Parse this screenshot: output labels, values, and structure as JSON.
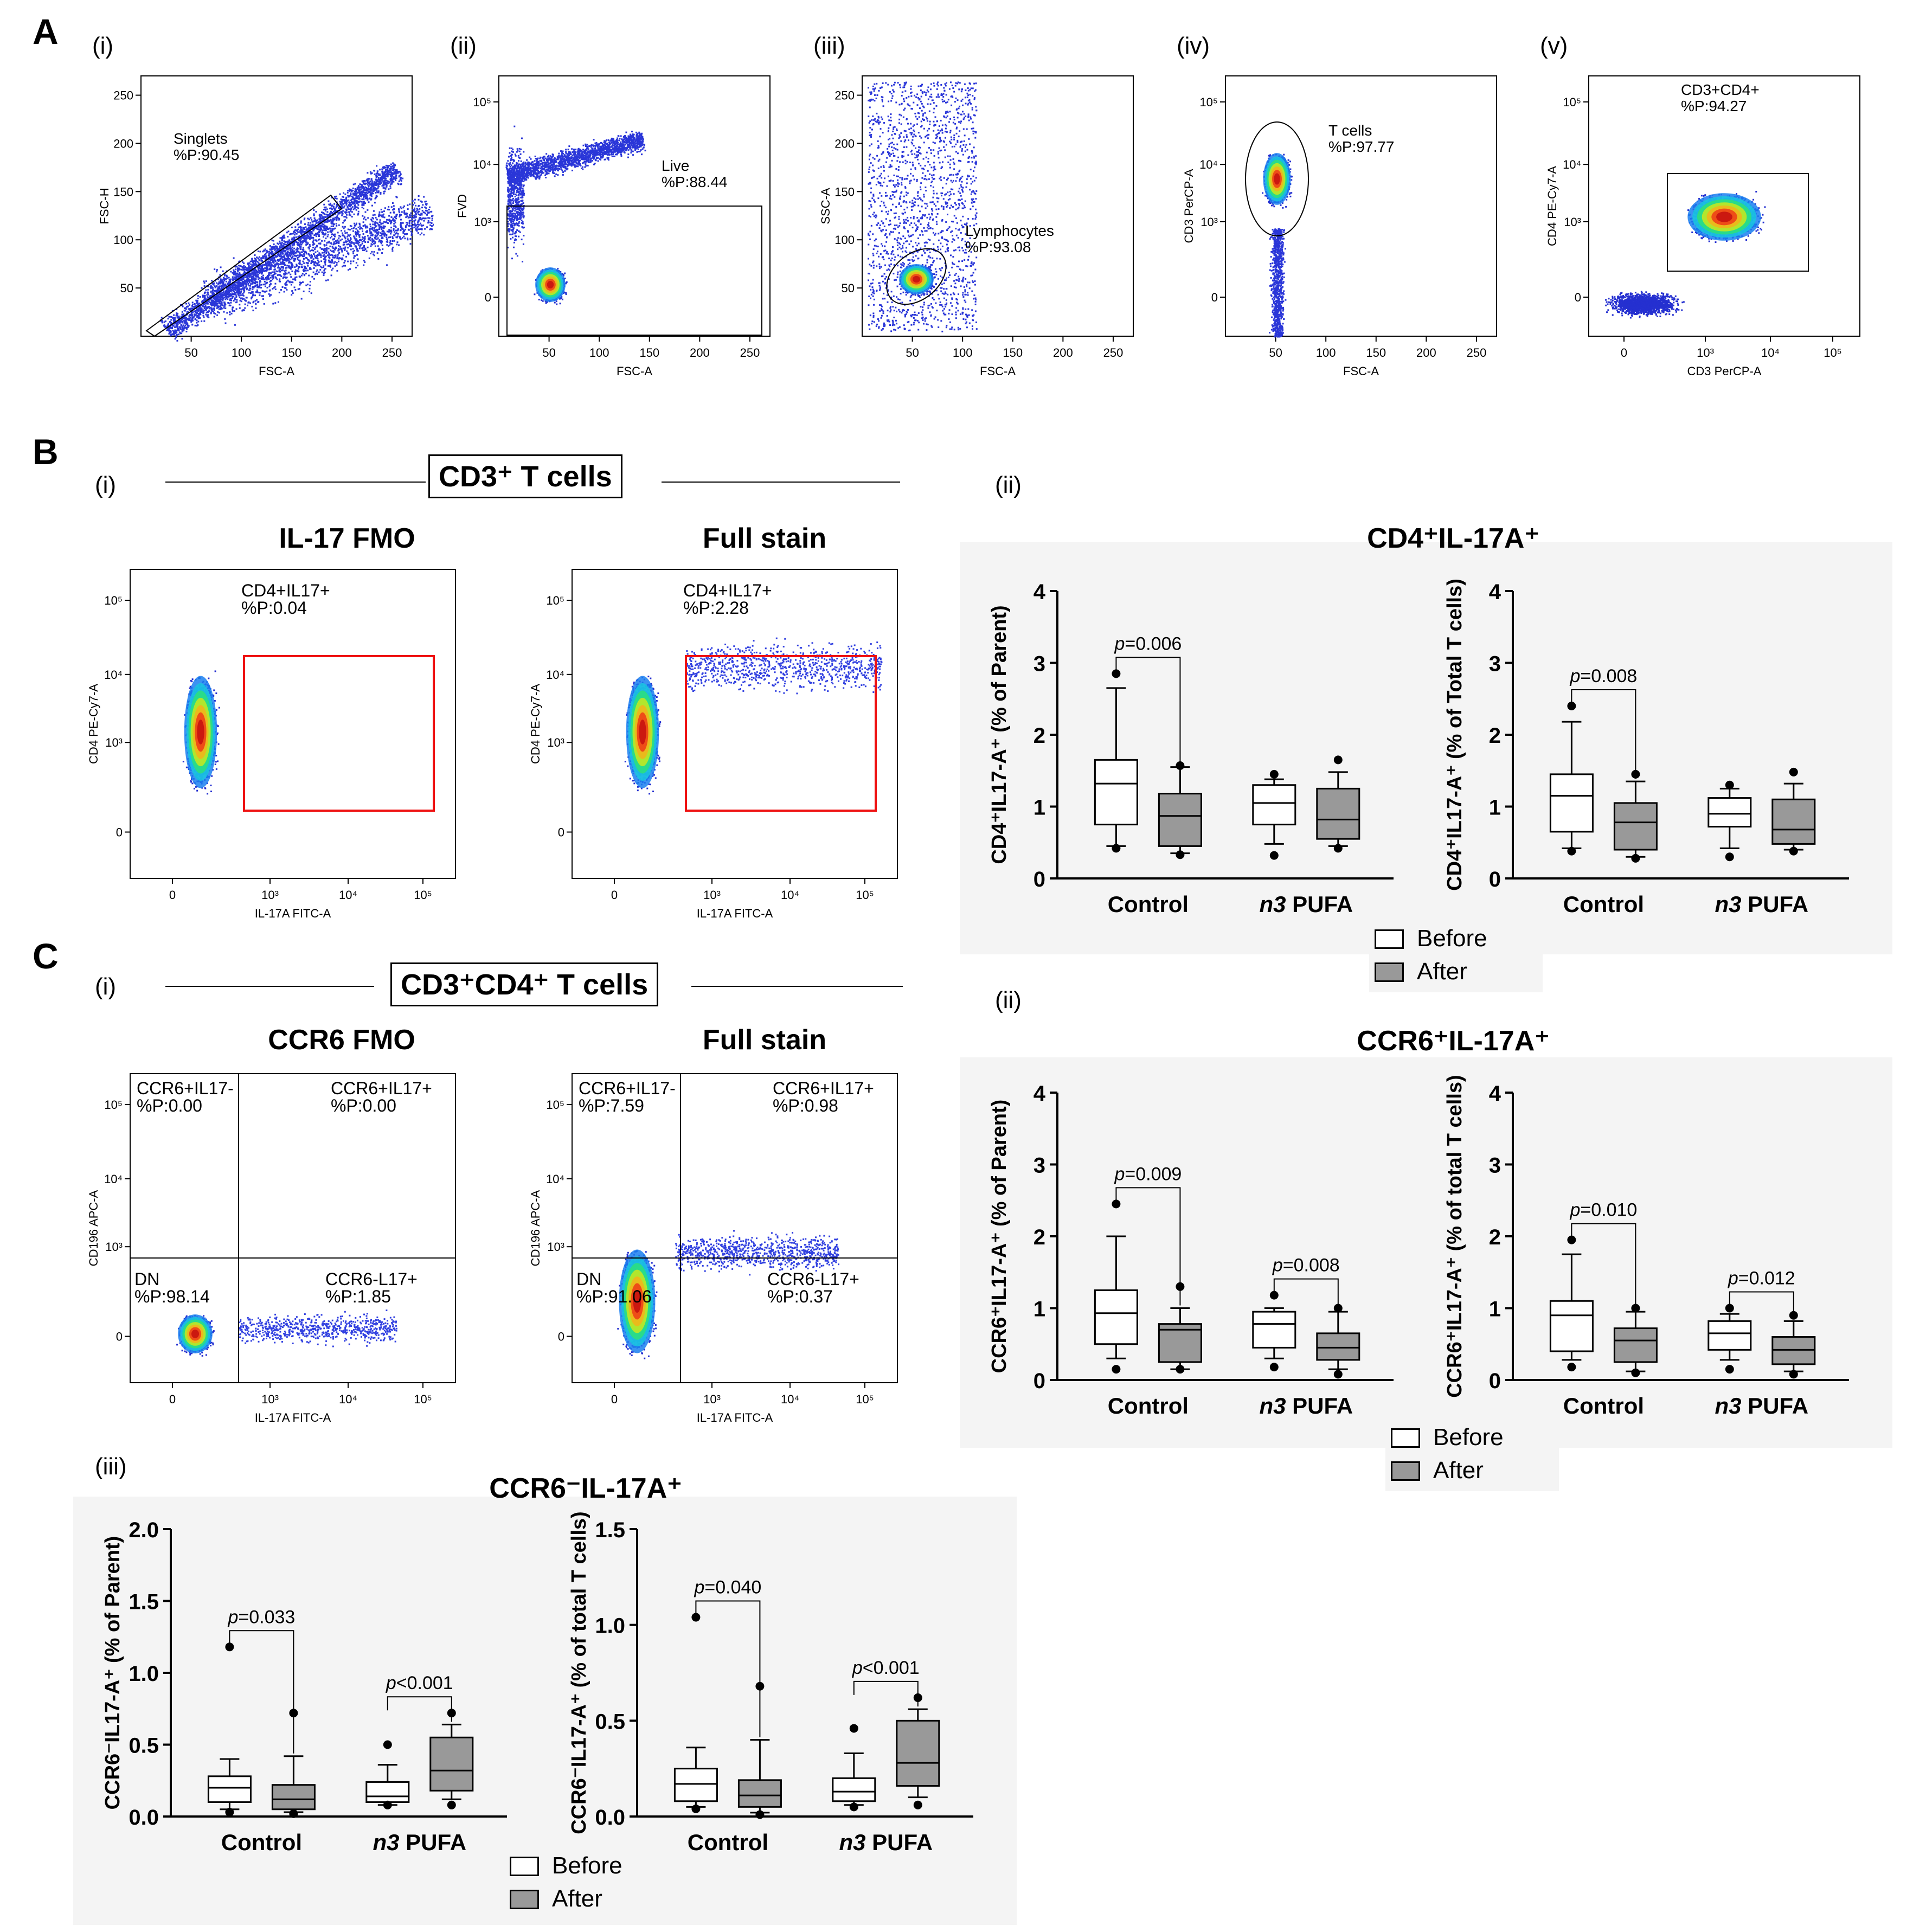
{
  "panelA": {
    "letter": "A",
    "subs": [
      {
        "label": "(i)",
        "gate_name": "Singlets",
        "gate_pct": "%P:90.45",
        "xlabel": "FSC-A",
        "ylabel": "FSC-H",
        "xticks": [
          "50",
          "100",
          "150",
          "200",
          "250"
        ],
        "yticks": [
          "50",
          "100",
          "150",
          "200",
          "250"
        ]
      },
      {
        "label": "(ii)",
        "gate_name": "Live",
        "gate_pct": "%P:88.44",
        "xlabel": "FSC-A",
        "ylabel": "FVD",
        "xticks": [
          "50",
          "100",
          "150",
          "200",
          "250"
        ],
        "yticks": [
          "0",
          "10³",
          "10⁴",
          "10⁵"
        ]
      },
      {
        "label": "(iii)",
        "gate_name": "Lymphocytes",
        "gate_pct": "%P:93.08",
        "xlabel": "FSC-A",
        "ylabel": "SSC-A",
        "xticks": [
          "50",
          "100",
          "150",
          "200",
          "250"
        ],
        "yticks": [
          "50",
          "100",
          "150",
          "200",
          "250"
        ]
      },
      {
        "label": "(iv)",
        "gate_name": "T cells",
        "gate_pct": "%P:97.77",
        "xlabel": "FSC-A",
        "ylabel": "CD3 PerCP-A",
        "xticks": [
          "50",
          "100",
          "150",
          "200",
          "250"
        ],
        "yticks": [
          "0",
          "10³",
          "10⁴",
          "10⁵"
        ]
      },
      {
        "label": "(v)",
        "gate_name": "CD3+CD4+",
        "gate_pct": "%P:94.27",
        "xlabel": "CD3 PerCP-A",
        "ylabel": "CD4 PE-Cy7-A",
        "xticks": [
          "0",
          "10³",
          "10⁴",
          "10⁵"
        ],
        "yticks": [
          "0",
          "10³",
          "10⁴",
          "10⁵"
        ]
      }
    ]
  },
  "panelB": {
    "letter": "B",
    "sub_i": "(i)",
    "sub_ii": "(ii)",
    "population_title": "CD3⁺ T cells",
    "plot_titles": [
      "IL-17 FMO",
      "Full stain"
    ],
    "gates": [
      {
        "name": "CD4+IL17+",
        "pct": "%P:0.04"
      },
      {
        "name": "CD4+IL17+",
        "pct": "%P:2.28"
      }
    ],
    "xlabel": "IL-17A FITC-A",
    "ylabel": "CD4 PE-Cy7-A",
    "ticks": [
      "0",
      "10³",
      "10⁴",
      "10⁵"
    ],
    "box_title": "CD4⁺IL-17A⁺"
  },
  "panelC": {
    "letter": "C",
    "sub_i": "(i)",
    "sub_ii": "(ii)",
    "sub_iii": "(iii)",
    "population_title": "CD3⁺CD4⁺ T cells",
    "plot_titles": [
      "CCR6 FMO",
      "Full stain"
    ],
    "quadrants": [
      {
        "ul": "CCR6+IL17-",
        "ul_pct": "%P:0.00",
        "ur": "CCR6+IL17+",
        "ur_pct": "%P:0.00",
        "ll": "DN",
        "ll_pct": "%P:98.14",
        "lr": "CCR6-L17+",
        "lr_pct": "%P:1.85"
      },
      {
        "ul": "CCR6+IL17-",
        "ul_pct": "%P:7.59",
        "ur": "CCR6+IL17+",
        "ur_pct": "%P:0.98",
        "ll": "DN",
        "ll_pct": "%P:91.06",
        "lr": "CCR6-L17+",
        "lr_pct": "%P:0.37"
      }
    ],
    "xlabel": "IL-17A FITC-A",
    "ylabel": "CD196 APC-A",
    "ticks": [
      "0",
      "10³",
      "10⁴",
      "10⁵"
    ],
    "box_title_ii": "CCR6⁺IL-17A⁺",
    "box_title_iii": "CCR6⁻IL-17A⁺"
  },
  "legend": {
    "before": "Before",
    "after": "After"
  },
  "chart_data": [
    {
      "type": "box",
      "id": "B-ii-left",
      "title": "CD4⁺IL-17A⁺",
      "ylabel": "CD4⁺IL17-A⁺ (% of Parent)",
      "ylim": [
        0,
        4
      ],
      "yticks": [
        "0",
        "1",
        "2",
        "3",
        "4"
      ],
      "categories": [
        "Control",
        "n3 PUFA"
      ],
      "series": [
        {
          "name": "Before",
          "boxes": [
            {
              "min": 0.45,
              "q1": 0.75,
              "median": 1.32,
              "q3": 1.65,
              "max": 2.65,
              "outliers": [
                0.42,
                2.85
              ]
            },
            {
              "min": 0.48,
              "q1": 0.75,
              "median": 1.05,
              "q3": 1.3,
              "max": 1.38,
              "outliers": [
                0.32,
                1.45
              ]
            }
          ]
        },
        {
          "name": "After",
          "boxes": [
            {
              "min": 0.35,
              "q1": 0.45,
              "median": 0.87,
              "q3": 1.18,
              "max": 1.55,
              "outliers": [
                0.33,
                1.57
              ]
            },
            {
              "min": 0.45,
              "q1": 0.55,
              "median": 0.82,
              "q3": 1.25,
              "max": 1.48,
              "outliers": [
                0.42,
                1.65
              ]
            }
          ]
        }
      ],
      "pvalues": [
        {
          "category": "Control",
          "text": "p=0.006"
        }
      ]
    },
    {
      "type": "box",
      "id": "B-ii-right",
      "ylabel": "CD4⁺IL17-A⁺ (% of Total T cells)",
      "ylim": [
        0,
        4
      ],
      "yticks": [
        "0",
        "1",
        "2",
        "3",
        "4"
      ],
      "categories": [
        "Control",
        "n3 PUFA"
      ],
      "series": [
        {
          "name": "Before",
          "boxes": [
            {
              "min": 0.42,
              "q1": 0.65,
              "median": 1.15,
              "q3": 1.45,
              "max": 2.18,
              "outliers": [
                0.38,
                2.4
              ]
            },
            {
              "min": 0.42,
              "q1": 0.72,
              "median": 0.9,
              "q3": 1.12,
              "max": 1.25,
              "outliers": [
                0.3,
                1.3
              ]
            }
          ]
        },
        {
          "name": "After",
          "boxes": [
            {
              "min": 0.3,
              "q1": 0.4,
              "median": 0.78,
              "q3": 1.05,
              "max": 1.35,
              "outliers": [
                0.28,
                1.45
              ]
            },
            {
              "min": 0.4,
              "q1": 0.48,
              "median": 0.68,
              "q3": 1.1,
              "max": 1.32,
              "outliers": [
                0.38,
                1.48
              ]
            }
          ]
        }
      ],
      "pvalues": [
        {
          "category": "Control",
          "text": "p=0.008"
        }
      ]
    },
    {
      "type": "box",
      "id": "C-ii-left",
      "title": "CCR6⁺IL-17A⁺",
      "ylabel": "CCR6⁺IL17-A⁺ (% of Parent)",
      "ylim": [
        0,
        4
      ],
      "yticks": [
        "0",
        "1",
        "2",
        "3",
        "4"
      ],
      "categories": [
        "Control",
        "n3 PUFA"
      ],
      "series": [
        {
          "name": "Before",
          "boxes": [
            {
              "min": 0.3,
              "q1": 0.5,
              "median": 0.93,
              "q3": 1.25,
              "max": 2.0,
              "outliers": [
                0.15,
                2.45
              ]
            },
            {
              "min": 0.3,
              "q1": 0.45,
              "median": 0.78,
              "q3": 0.95,
              "max": 1.0,
              "outliers": [
                0.18,
                1.18
              ]
            }
          ]
        },
        {
          "name": "After",
          "boxes": [
            {
              "min": 0.15,
              "q1": 0.25,
              "median": 0.7,
              "q3": 0.78,
              "max": 1.0,
              "outliers": [
                0.15,
                1.3
              ]
            },
            {
              "min": 0.15,
              "q1": 0.28,
              "median": 0.45,
              "q3": 0.65,
              "max": 0.95,
              "outliers": [
                0.08,
                1.0
              ]
            }
          ]
        }
      ],
      "pvalues": [
        {
          "category": "Control",
          "text": "p=0.009"
        },
        {
          "category": "n3 PUFA",
          "text": "p=0.008"
        }
      ]
    },
    {
      "type": "box",
      "id": "C-ii-right",
      "ylabel": "CCR6⁺IL17-A⁺ (% of total T cells)",
      "ylim": [
        0,
        4
      ],
      "yticks": [
        "0",
        "1",
        "2",
        "3",
        "4"
      ],
      "categories": [
        "Control",
        "n3 PUFA"
      ],
      "series": [
        {
          "name": "Before",
          "boxes": [
            {
              "min": 0.28,
              "q1": 0.4,
              "median": 0.9,
              "q3": 1.1,
              "max": 1.75,
              "outliers": [
                0.18,
                1.95
              ]
            },
            {
              "min": 0.28,
              "q1": 0.42,
              "median": 0.65,
              "q3": 0.82,
              "max": 0.92,
              "outliers": [
                0.15,
                1.0
              ]
            }
          ]
        },
        {
          "name": "After",
          "boxes": [
            {
              "min": 0.12,
              "q1": 0.25,
              "median": 0.55,
              "q3": 0.72,
              "max": 0.95,
              "outliers": [
                0.1,
                1.0
              ]
            },
            {
              "min": 0.12,
              "q1": 0.22,
              "median": 0.42,
              "q3": 0.6,
              "max": 0.82,
              "outliers": [
                0.08,
                0.9
              ]
            }
          ]
        }
      ],
      "pvalues": [
        {
          "category": "Control",
          "text": "p=0.010"
        },
        {
          "category": "n3 PUFA",
          "text": "p=0.012"
        }
      ]
    },
    {
      "type": "box",
      "id": "C-iii-left",
      "title": "CCR6⁻IL-17A⁺",
      "ylabel": "CCR6⁻IL17-A⁺ (% of Parent)",
      "ylim": [
        0,
        2.0
      ],
      "yticks": [
        "0.0",
        "0.5",
        "1.0",
        "1.5",
        "2.0"
      ],
      "categories": [
        "Control",
        "n3 PUFA"
      ],
      "series": [
        {
          "name": "Before",
          "boxes": [
            {
              "min": 0.05,
              "q1": 0.1,
              "median": 0.2,
              "q3": 0.28,
              "max": 0.4,
              "outliers": [
                0.03,
                1.18
              ]
            },
            {
              "min": 0.08,
              "q1": 0.1,
              "median": 0.14,
              "q3": 0.24,
              "max": 0.36,
              "outliers": [
                0.08,
                0.5
              ]
            }
          ]
        },
        {
          "name": "After",
          "boxes": [
            {
              "min": 0.03,
              "q1": 0.05,
              "median": 0.12,
              "q3": 0.22,
              "max": 0.42,
              "outliers": [
                0.02,
                0.72
              ]
            },
            {
              "min": 0.12,
              "q1": 0.18,
              "median": 0.32,
              "q3": 0.55,
              "max": 0.64,
              "outliers": [
                0.08,
                0.72
              ]
            }
          ]
        }
      ],
      "pvalues": [
        {
          "category": "Control",
          "text": "p=0.033"
        },
        {
          "category": "n3 PUFA",
          "text": "p<0.001"
        }
      ]
    },
    {
      "type": "box",
      "id": "C-iii-right",
      "ylabel": "CCR6⁻IL17-A⁺ (% of total T cells)",
      "ylim": [
        0,
        1.5
      ],
      "yticks": [
        "0.0",
        "0.5",
        "1.0",
        "1.5"
      ],
      "categories": [
        "Control",
        "n3 PUFA"
      ],
      "series": [
        {
          "name": "Before",
          "boxes": [
            {
              "min": 0.05,
              "q1": 0.08,
              "median": 0.17,
              "q3": 0.25,
              "max": 0.36,
              "outliers": [
                0.04,
                1.04
              ]
            },
            {
              "min": 0.06,
              "q1": 0.08,
              "median": 0.13,
              "q3": 0.2,
              "max": 0.33,
              "outliers": [
                0.05,
                0.46
              ]
            }
          ]
        },
        {
          "name": "After",
          "boxes": [
            {
              "min": 0.02,
              "q1": 0.05,
              "median": 0.11,
              "q3": 0.19,
              "max": 0.4,
              "outliers": [
                0.01,
                0.68
              ]
            },
            {
              "min": 0.1,
              "q1": 0.16,
              "median": 0.28,
              "q3": 0.5,
              "max": 0.56,
              "outliers": [
                0.06,
                0.62
              ]
            }
          ]
        }
      ],
      "pvalues": [
        {
          "category": "Control",
          "text": "p=0.040"
        },
        {
          "category": "n3 PUFA",
          "text": "p<0.001"
        }
      ]
    }
  ]
}
